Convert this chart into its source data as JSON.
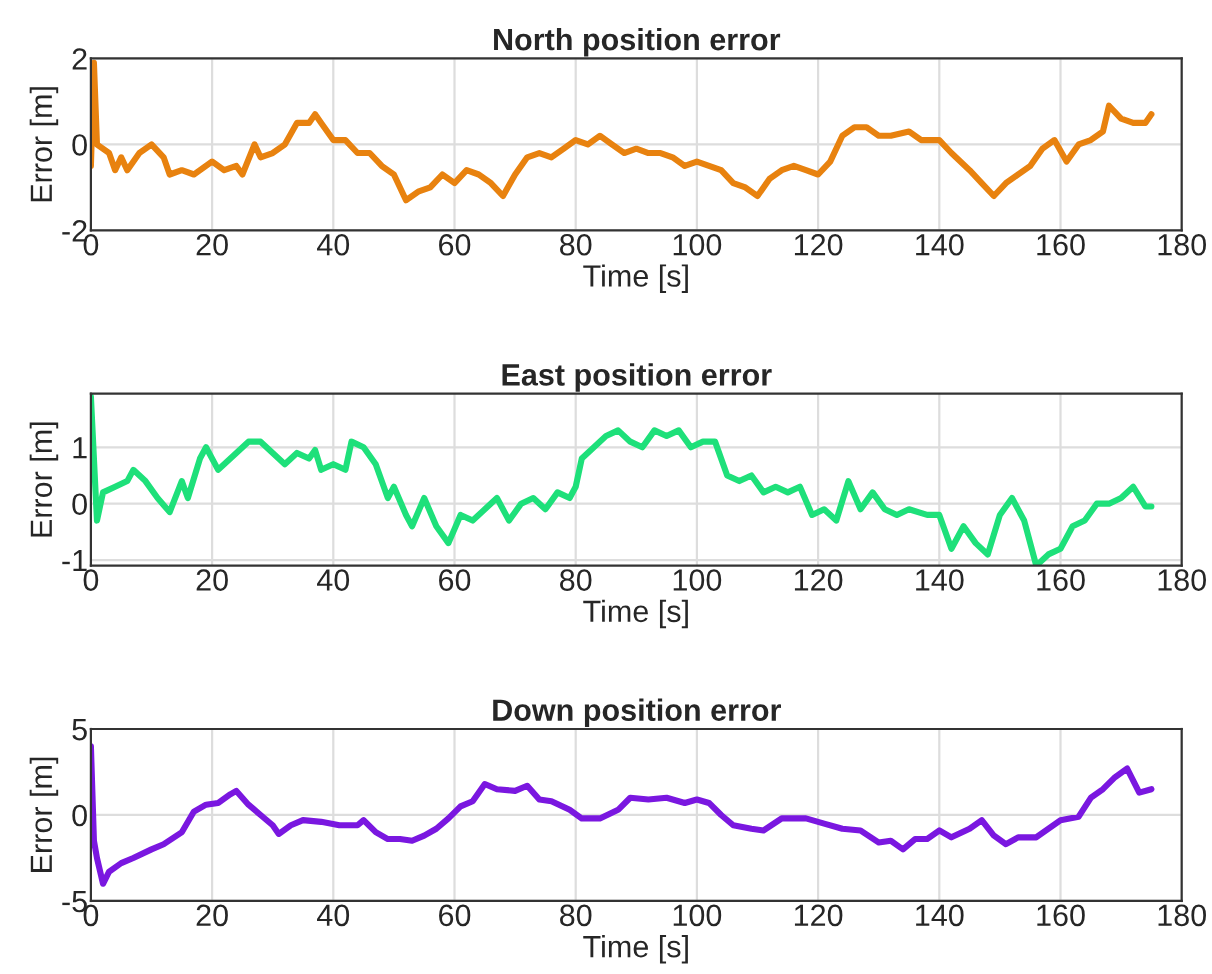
{
  "chart_data": [
    {
      "type": "line",
      "title": "North position error",
      "xlabel": "Time [s]",
      "ylabel": "Error [m]",
      "xlim": [
        0,
        180
      ],
      "xticks": [
        0,
        20,
        40,
        60,
        80,
        100,
        120,
        140,
        160,
        180
      ],
      "ylim": [
        -2,
        2
      ],
      "yticks": [
        -2,
        0,
        2
      ],
      "grid": true,
      "series": [
        {
          "color": "#e8820f",
          "x": [
            0,
            0.5,
            1,
            2,
            3,
            4,
            5,
            6,
            8,
            10,
            12,
            13,
            15,
            17,
            20,
            22,
            24,
            25,
            27,
            28,
            30,
            32,
            34,
            36,
            37,
            38,
            40,
            42,
            44,
            46,
            48,
            50,
            52,
            54,
            56,
            58,
            60,
            62,
            64,
            66,
            68,
            70,
            72,
            74,
            76,
            78,
            80,
            82,
            84,
            86,
            88,
            90,
            92,
            94,
            96,
            98,
            100,
            102,
            104,
            106,
            108,
            110,
            112,
            114,
            116,
            118,
            120,
            122,
            124,
            126,
            128,
            130,
            132,
            135,
            137,
            140,
            142,
            145,
            147,
            149,
            151,
            153,
            155,
            157,
            159,
            161,
            163,
            165,
            167,
            168,
            170,
            172,
            174,
            175
          ],
          "values": [
            -0.5,
            1.9,
            0,
            -0.1,
            -0.2,
            -0.6,
            -0.3,
            -0.6,
            -0.2,
            0,
            -0.3,
            -0.7,
            -0.6,
            -0.7,
            -0.4,
            -0.6,
            -0.5,
            -0.7,
            0,
            -0.3,
            -0.2,
            0,
            0.5,
            0.5,
            0.7,
            0.5,
            0.1,
            0.1,
            -0.2,
            -0.2,
            -0.5,
            -0.7,
            -1.3,
            -1.1,
            -1.0,
            -0.7,
            -0.9,
            -0.6,
            -0.7,
            -0.9,
            -1.2,
            -0.7,
            -0.3,
            -0.2,
            -0.3,
            -0.1,
            0.1,
            0,
            0.2,
            0,
            -0.2,
            -0.1,
            -0.2,
            -0.2,
            -0.3,
            -0.5,
            -0.4,
            -0.5,
            -0.6,
            -0.9,
            -1.0,
            -1.2,
            -0.8,
            -0.6,
            -0.5,
            -0.6,
            -0.7,
            -0.4,
            0.2,
            0.4,
            0.4,
            0.2,
            0.2,
            0.3,
            0.1,
            0.1,
            -0.2,
            -0.6,
            -0.9,
            -1.2,
            -0.9,
            -0.7,
            -0.5,
            -0.1,
            0.1,
            -0.4,
            0,
            0.1,
            0.3,
            0.9,
            0.6,
            0.5,
            0.5,
            0.7
          ]
        }
      ]
    },
    {
      "type": "line",
      "title": "East position error",
      "xlabel": "Time [s]",
      "ylabel": "Error [m]",
      "xlim": [
        0,
        180
      ],
      "xticks": [
        0,
        20,
        40,
        60,
        80,
        100,
        120,
        140,
        160,
        180
      ],
      "ylim": [
        -1.1,
        1.95
      ],
      "yticks": [
        -1,
        0,
        1
      ],
      "grid": true,
      "series": [
        {
          "color": "#1ee07a",
          "x": [
            0,
            1,
            2,
            4,
            6,
            7,
            9,
            11,
            13,
            15,
            16,
            18,
            19,
            21,
            24,
            26,
            28,
            30,
            32,
            34,
            36,
            37,
            38,
            40,
            42,
            43,
            45,
            47,
            49,
            50,
            52,
            53,
            55,
            57,
            59,
            61,
            63,
            65,
            67,
            69,
            71,
            73,
            75,
            77,
            79,
            80,
            81,
            83,
            85,
            87,
            89,
            91,
            93,
            95,
            97,
            99,
            101,
            103,
            105,
            107,
            109,
            111,
            113,
            115,
            117,
            119,
            121,
            123,
            125,
            127,
            129,
            131,
            133,
            135,
            138,
            140,
            142,
            144,
            146,
            148,
            150,
            152,
            154,
            156,
            158,
            160,
            162,
            164,
            166,
            168,
            170,
            172,
            174,
            175
          ],
          "values": [
            1.9,
            -0.3,
            0.2,
            0.3,
            0.4,
            0.6,
            0.4,
            0.1,
            -0.15,
            0.4,
            0.1,
            0.8,
            1.0,
            0.6,
            0.9,
            1.1,
            1.1,
            0.9,
            0.7,
            0.9,
            0.8,
            0.95,
            0.6,
            0.7,
            0.6,
            1.1,
            1.0,
            0.7,
            0.1,
            0.3,
            -0.2,
            -0.4,
            0.1,
            -0.4,
            -0.7,
            -0.2,
            -0.3,
            -0.1,
            0.1,
            -0.3,
            0,
            0.1,
            -0.1,
            0.2,
            0.1,
            0.3,
            0.8,
            1.0,
            1.2,
            1.3,
            1.1,
            1.0,
            1.3,
            1.2,
            1.3,
            1.0,
            1.1,
            1.1,
            0.5,
            0.4,
            0.5,
            0.2,
            0.3,
            0.2,
            0.3,
            -0.2,
            -0.1,
            -0.3,
            0.4,
            -0.1,
            0.2,
            -0.1,
            -0.2,
            -0.1,
            -0.2,
            -0.2,
            -0.8,
            -0.4,
            -0.7,
            -0.9,
            -0.2,
            0.1,
            -0.3,
            -1.1,
            -0.9,
            -0.8,
            -0.4,
            -0.3,
            0,
            0,
            0.1,
            0.3,
            -0.05,
            -0.05
          ]
        }
      ]
    },
    {
      "type": "line",
      "title": "Down position error",
      "xlabel": "Time [s]",
      "ylabel": "Error [m]",
      "xlim": [
        0,
        180
      ],
      "xticks": [
        0,
        20,
        40,
        60,
        80,
        100,
        120,
        140,
        160,
        180
      ],
      "ylim": [
        -5,
        5
      ],
      "yticks": [
        -5,
        0,
        5
      ],
      "grid": true,
      "series": [
        {
          "color": "#7a17e0",
          "x": [
            0,
            0.5,
            1,
            2,
            3,
            5,
            7,
            10,
            12,
            15,
            17,
            19,
            21,
            23,
            24,
            26,
            28,
            30,
            31,
            33,
            35,
            38,
            41,
            44,
            45,
            47,
            49,
            51,
            53,
            55,
            57,
            59,
            61,
            63,
            65,
            67,
            70,
            72,
            74,
            76,
            79,
            81,
            84,
            87,
            89,
            92,
            95,
            98,
            100,
            102,
            104,
            106,
            109,
            111,
            114,
            118,
            121,
            124,
            127,
            130,
            132,
            134,
            136,
            138,
            140,
            142,
            145,
            147,
            149,
            151,
            153,
            156,
            158,
            160,
            163,
            165,
            167,
            169,
            171,
            173,
            175
          ],
          "values": [
            4,
            -1.5,
            -2.5,
            -4,
            -3.3,
            -2.8,
            -2.5,
            -2,
            -1.7,
            -1.0,
            0.2,
            0.6,
            0.7,
            1.2,
            1.4,
            0.6,
            0,
            -0.6,
            -1.1,
            -0.6,
            -0.3,
            -0.4,
            -0.6,
            -0.6,
            -0.3,
            -1.0,
            -1.4,
            -1.4,
            -1.5,
            -1.2,
            -0.8,
            -0.2,
            0.5,
            0.8,
            1.8,
            1.5,
            1.4,
            1.7,
            0.9,
            0.8,
            0.3,
            -0.2,
            -0.2,
            0.3,
            1.0,
            0.9,
            1.0,
            0.7,
            0.9,
            0.7,
            0,
            -0.6,
            -0.8,
            -0.9,
            -0.2,
            -0.2,
            -0.5,
            -0.8,
            -0.9,
            -1.6,
            -1.5,
            -2.0,
            -1.4,
            -1.4,
            -0.9,
            -1.3,
            -0.8,
            -0.3,
            -1.2,
            -1.7,
            -1.3,
            -1.3,
            -0.8,
            -0.3,
            -0.1,
            1.0,
            1.5,
            2.2,
            2.7,
            1.3,
            1.5
          ]
        }
      ]
    }
  ]
}
